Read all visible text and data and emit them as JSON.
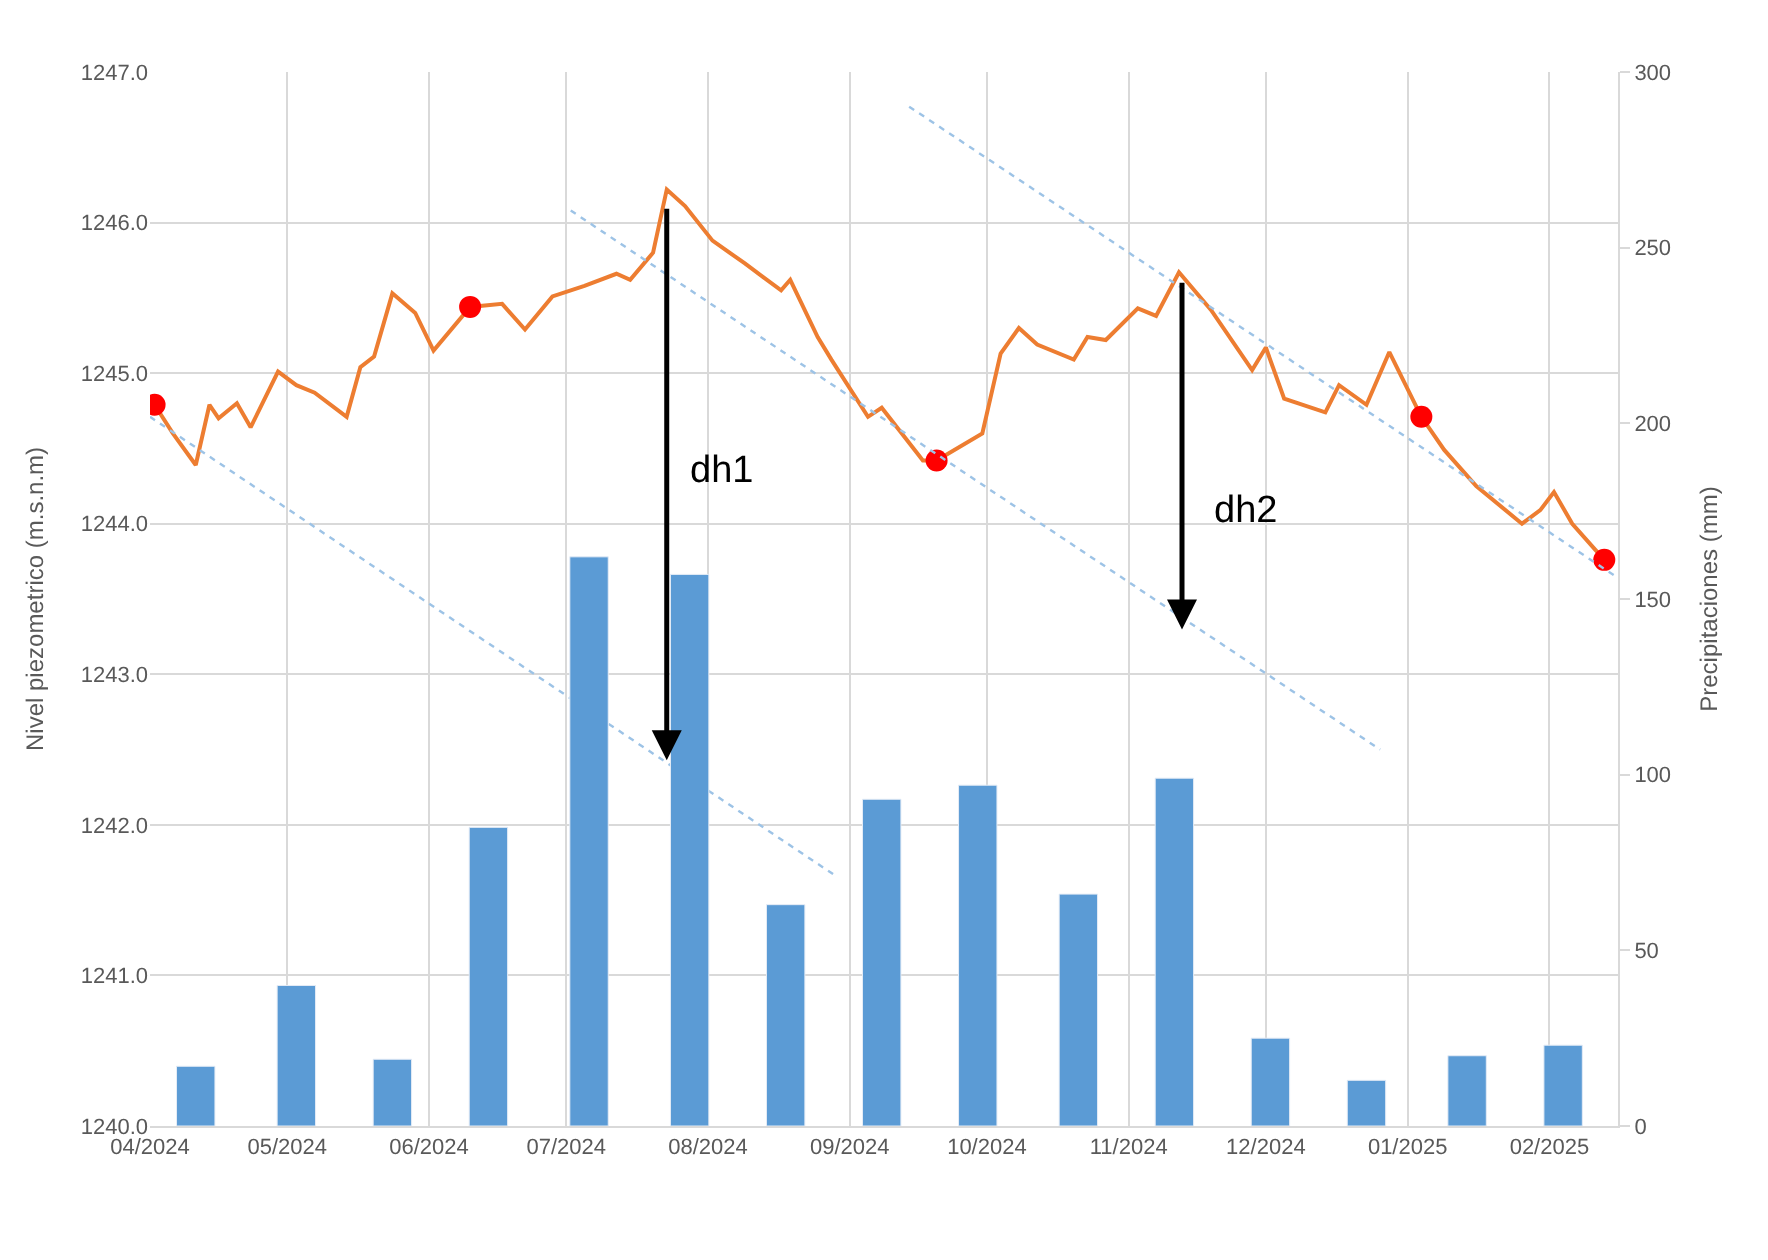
{
  "chart_data": {
    "type": "line",
    "ylabel": "Nivel piezometrico (m.s.n.m)",
    "y2label": "Precipitaciones (mm)",
    "xlim": [
      "2024-04-01",
      "2025-02-16"
    ],
    "xticks": [
      {
        "value": "2024-04-01",
        "label": "04/2024"
      },
      {
        "value": "2024-05-01",
        "label": "05/2024"
      },
      {
        "value": "2024-06-01",
        "label": "06/2024"
      },
      {
        "value": "2024-07-01",
        "label": "07/2024"
      },
      {
        "value": "2024-08-01",
        "label": "08/2024"
      },
      {
        "value": "2024-09-01",
        "label": "09/2024"
      },
      {
        "value": "2024-10-01",
        "label": "10/2024"
      },
      {
        "value": "2024-11-01",
        "label": "11/2024"
      },
      {
        "value": "2024-12-01",
        "label": "12/2024"
      },
      {
        "value": "2025-01-01",
        "label": "01/2025"
      },
      {
        "value": "2025-02-01",
        "label": "02/2025"
      }
    ],
    "ylim": [
      1240,
      1247
    ],
    "yticks": [
      {
        "value": 1240,
        "label": "1240.0"
      },
      {
        "value": 1241,
        "label": "1241.0"
      },
      {
        "value": 1242,
        "label": "1242.0"
      },
      {
        "value": 1243,
        "label": "1243.0"
      },
      {
        "value": 1244,
        "label": "1244.0"
      },
      {
        "value": 1245,
        "label": "1245.0"
      },
      {
        "value": 1246,
        "label": "1246.0"
      },
      {
        "value": 1247,
        "label": "1247.0"
      }
    ],
    "y2lim": [
      0,
      300
    ],
    "y2ticks": [
      0,
      50,
      100,
      150,
      200,
      250,
      300
    ],
    "grid": true,
    "series": [
      {
        "type": "bar",
        "axis": "y2",
        "color": "#5b9bd5",
        "x": [
          "2024-04-11",
          "2024-05-03",
          "2024-05-24",
          "2024-06-14",
          "2024-07-06",
          "2024-07-28",
          "2024-08-18",
          "2024-09-08",
          "2024-09-29",
          "2024-10-21",
          "2024-11-11",
          "2024-12-02",
          "2024-12-23",
          "2025-01-14",
          "2025-02-04"
        ],
        "values": [
          17,
          40,
          19,
          85,
          162,
          157,
          63,
          93,
          97,
          66,
          99,
          25,
          13,
          20,
          23
        ]
      },
      {
        "color": "#ed7d31",
        "marker": "none",
        "line_style": "solid",
        "x": [
          "2024-04-02",
          "2024-04-06",
          "2024-04-11",
          "2024-04-14",
          "2024-04-16",
          "2024-04-20",
          "2024-04-23",
          "2024-04-29",
          "2024-05-03",
          "2024-05-07",
          "2024-05-14",
          "2024-05-17",
          "2024-05-20",
          "2024-05-24",
          "2024-05-29",
          "2024-06-02",
          "2024-06-10",
          "2024-06-17",
          "2024-06-22",
          "2024-06-28",
          "2024-07-05",
          "2024-07-12",
          "2024-07-15",
          "2024-07-20",
          "2024-07-23",
          "2024-07-27",
          "2024-08-02",
          "2024-08-09",
          "2024-08-17",
          "2024-08-19",
          "2024-08-25",
          "2024-08-28",
          "2024-09-05",
          "2024-09-08",
          "2024-09-17",
          "2024-09-20",
          "2024-09-30",
          "2024-10-04",
          "2024-10-08",
          "2024-10-12",
          "2024-10-20",
          "2024-10-23",
          "2024-10-27",
          "2024-11-03",
          "2024-11-07",
          "2024-11-12",
          "2024-11-19",
          "2024-11-28",
          "2024-12-01",
          "2024-12-05",
          "2024-12-14",
          "2024-12-17",
          "2024-12-23",
          "2024-12-28",
          "2025-01-04",
          "2025-01-09",
          "2025-01-16",
          "2025-01-26",
          "2025-01-30",
          "2025-02-02",
          "2025-02-06",
          "2025-02-13"
        ],
        "values": [
          1244.79,
          1244.6,
          1244.39,
          1244.79,
          1244.7,
          1244.8,
          1244.64,
          1245.01,
          1244.92,
          1244.87,
          1244.71,
          1245.04,
          1245.11,
          1245.53,
          1245.4,
          1245.15,
          1245.44,
          1245.46,
          1245.29,
          1245.51,
          1245.58,
          1245.66,
          1245.62,
          1245.8,
          1246.22,
          1246.11,
          1245.88,
          1245.73,
          1245.55,
          1245.62,
          1245.24,
          1245.09,
          1244.71,
          1244.77,
          1244.42,
          1244.42,
          1244.6,
          1245.13,
          1245.3,
          1245.19,
          1245.09,
          1245.24,
          1245.22,
          1245.43,
          1245.38,
          1245.67,
          1245.42,
          1245.02,
          1245.17,
          1244.83,
          1244.74,
          1244.92,
          1244.79,
          1245.14,
          1244.71,
          1244.49,
          1244.25,
          1244.0,
          1244.09,
          1244.21,
          1244.0,
          1243.76
        ]
      },
      {
        "type": "scatter",
        "color": "#ff0000",
        "marker": "circle",
        "x": [
          "2024-04-02",
          "2024-06-10",
          "2024-09-20",
          "2025-01-04",
          "2025-02-13"
        ],
        "values": [
          1244.79,
          1245.44,
          1244.42,
          1244.71,
          1243.76
        ]
      },
      {
        "type": "line",
        "color": "#9dc3e6",
        "marker": "none",
        "line_style": "dotted",
        "x": [
          "2024-04-01",
          "2024-08-29"
        ],
        "values": [
          1244.71,
          1241.66
        ]
      },
      {
        "type": "line",
        "color": "#9dc3e6",
        "marker": "none",
        "line_style": "dotted",
        "x": [
          "2024-07-02",
          "2024-12-26"
        ],
        "values": [
          1246.08,
          1242.5
        ]
      },
      {
        "type": "line",
        "color": "#9dc3e6",
        "marker": "none",
        "line_style": "dotted",
        "x": [
          "2024-09-14",
          "2025-02-16"
        ],
        "values": [
          1246.77,
          1243.64
        ]
      }
    ],
    "annotations": [
      "dh1",
      "dh2"
    ]
  }
}
